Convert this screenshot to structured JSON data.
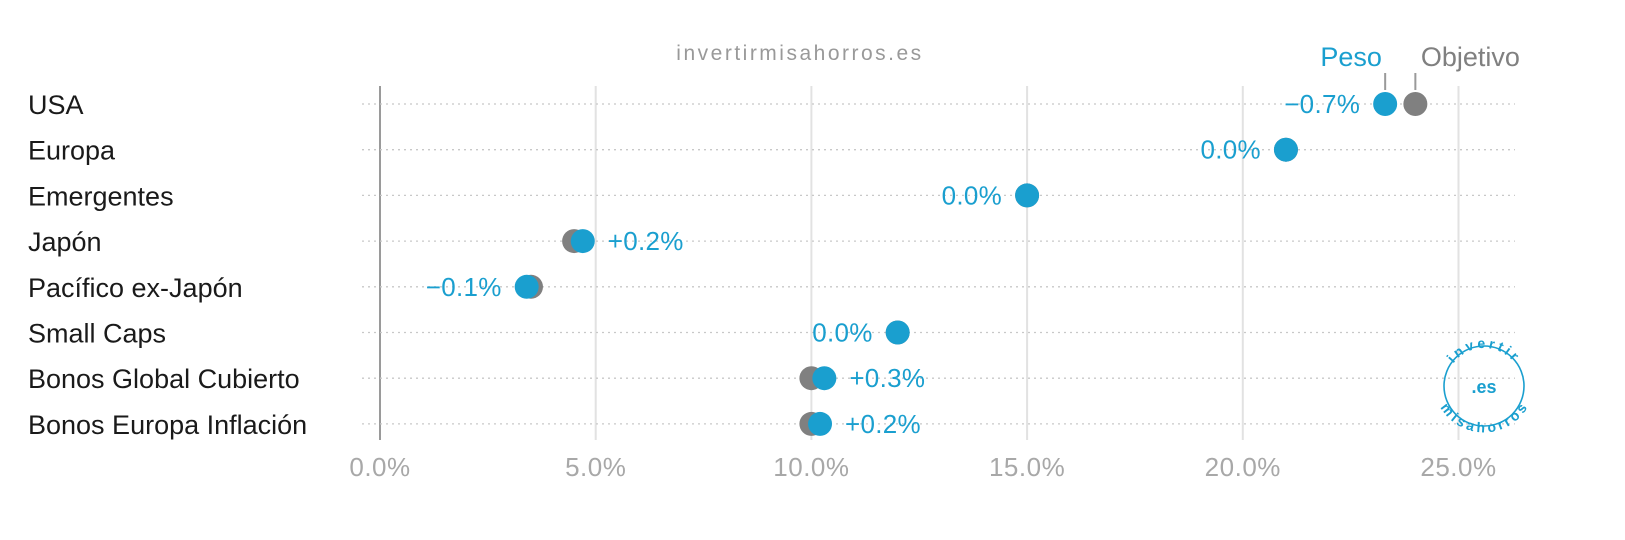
{
  "source": "invertirmisahorros.es",
  "chart_data": {
    "type": "dot",
    "categories": [
      "USA",
      "Europa",
      "Emergentes",
      "Japón",
      "Pacífico ex-Japón",
      "Small Caps",
      "Bonos Global Cubierto",
      "Bonos Europa Inflación"
    ],
    "series": [
      {
        "name": "Peso",
        "color": "#1a9fcf",
        "values": [
          23.3,
          21.0,
          15.0,
          4.7,
          3.4,
          12.0,
          10.3,
          10.2
        ]
      },
      {
        "name": "Objetivo",
        "color": "#808080",
        "values": [
          24.0,
          21.0,
          15.0,
          4.5,
          3.5,
          12.0,
          10.0,
          10.0
        ]
      }
    ],
    "diff_labels": [
      "−0.7%",
      "0.0%",
      "0.0%",
      "+0.2%",
      "−0.1%",
      "0.0%",
      "+0.3%",
      "+0.2%"
    ],
    "x_ticks": [
      {
        "value": 0,
        "label": "0.0%"
      },
      {
        "value": 5,
        "label": "5.0%"
      },
      {
        "value": 10,
        "label": "10.0%"
      },
      {
        "value": 15,
        "label": "15.0%"
      },
      {
        "value": 20,
        "label": "20.0%"
      },
      {
        "value": 25,
        "label": "25.0%"
      }
    ],
    "xlim": [
      0,
      26.5
    ],
    "legend": {
      "placement": "top-right",
      "items": [
        "Peso",
        "Objetivo"
      ]
    },
    "grid": true
  },
  "logo": {
    "top_text": "invertir",
    "center_text": ".es",
    "bottom_text": "misahorros",
    "color": "#1a9fcf"
  }
}
